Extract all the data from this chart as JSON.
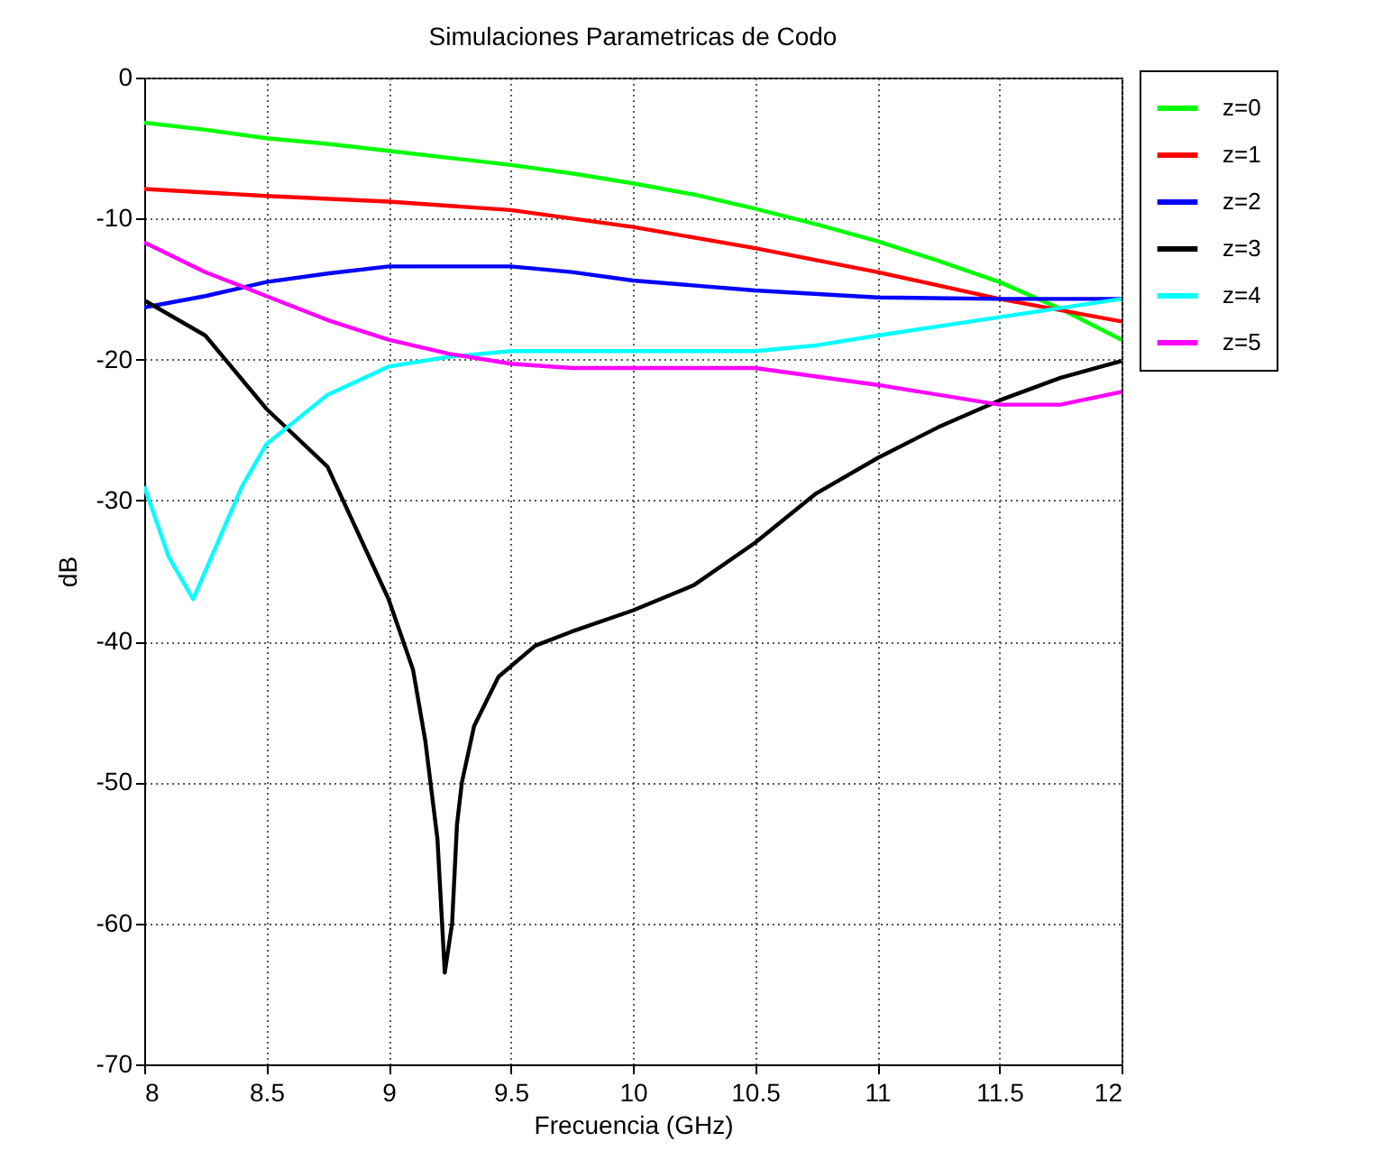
{
  "chart_data": {
    "type": "line",
    "title": "Simulaciones Parametricas de Codo",
    "xlabel": "Frecuencia (GHz)",
    "ylabel": "dB",
    "xlim": [
      8,
      12
    ],
    "xticks": [
      8,
      8.5,
      9,
      9.5,
      10,
      10.5,
      11,
      11.5,
      12
    ],
    "ylim": [
      -70,
      0
    ],
    "yticks": [
      -70,
      -60,
      -50,
      -40,
      -30,
      -20,
      -10,
      0
    ],
    "grid": true,
    "legend": "top right",
    "line_style": "solid",
    "marker": "none",
    "series": [
      {
        "name": "z=0",
        "color": "#00ff00",
        "x": [
          8,
          8.25,
          8.5,
          8.75,
          9,
          9.25,
          9.5,
          9.75,
          10,
          10.25,
          10.5,
          10.75,
          11,
          11.25,
          11.5,
          11.75,
          12
        ],
        "values": [
          -3.2,
          -3.7,
          -4.3,
          -4.7,
          -5.2,
          -5.7,
          -6.2,
          -6.8,
          -7.5,
          -8.3,
          -9.3,
          -10.4,
          -11.6,
          -13,
          -14.5,
          -16.4,
          -18.6
        ]
      },
      {
        "name": "z=1",
        "color": "#ff0000",
        "x": [
          8,
          8.5,
          9,
          9.5,
          10,
          10.5,
          11,
          11.5,
          12
        ],
        "values": [
          -7.9,
          -8.4,
          -8.8,
          -9.4,
          -10.6,
          -12.1,
          -13.8,
          -15.7,
          -17.3
        ]
      },
      {
        "name": "z=2",
        "color": "#0000ff",
        "x": [
          8,
          8.25,
          8.5,
          8.75,
          9,
          9.5,
          9.75,
          10,
          10.5,
          11,
          11.5,
          12
        ],
        "values": [
          -16.3,
          -15.5,
          -14.5,
          -13.9,
          -13.4,
          -13.4,
          -13.8,
          -14.4,
          -15.1,
          -15.6,
          -15.7,
          -15.7
        ]
      },
      {
        "name": "z=3",
        "color": "#000000",
        "x": [
          8,
          8.25,
          8.5,
          8.75,
          9,
          9.1,
          9.15,
          9.2,
          9.23,
          9.26,
          9.28,
          9.3,
          9.35,
          9.45,
          9.6,
          9.75,
          10,
          10.25,
          10.5,
          10.75,
          11,
          11.25,
          11.5,
          11.75,
          12
        ],
        "values": [
          -15.8,
          -18.3,
          -23.5,
          -27.6,
          -37,
          -42,
          -47,
          -54,
          -63.5,
          -60,
          -53,
          -50,
          -46,
          -42.5,
          -40.3,
          -39.3,
          -37.8,
          -36,
          -33,
          -29.5,
          -27,
          -24.8,
          -22.9,
          -21.3,
          -20.1
        ]
      },
      {
        "name": "z=4",
        "color": "#00ffff",
        "x": [
          8,
          8.1,
          8.2,
          8.25,
          8.4,
          8.5,
          8.75,
          9,
          9.25,
          9.5,
          10,
          10.5,
          10.75,
          11,
          11.5,
          12
        ],
        "values": [
          -29,
          -34,
          -37,
          -35,
          -29,
          -26,
          -22.5,
          -20.5,
          -19.8,
          -19.4,
          -19.4,
          -19.4,
          -19,
          -18.3,
          -17,
          -15.7
        ]
      },
      {
        "name": "z=5",
        "color": "#ff00ff",
        "x": [
          8,
          8.25,
          8.5,
          8.75,
          9,
          9.25,
          9.5,
          9.75,
          10,
          10.5,
          11,
          11.5,
          11.75,
          12
        ],
        "values": [
          -11.7,
          -13.8,
          -15.5,
          -17.2,
          -18.6,
          -19.6,
          -20.3,
          -20.6,
          -20.6,
          -20.6,
          -21.8,
          -23.2,
          -23.2,
          -22.3
        ]
      }
    ]
  }
}
